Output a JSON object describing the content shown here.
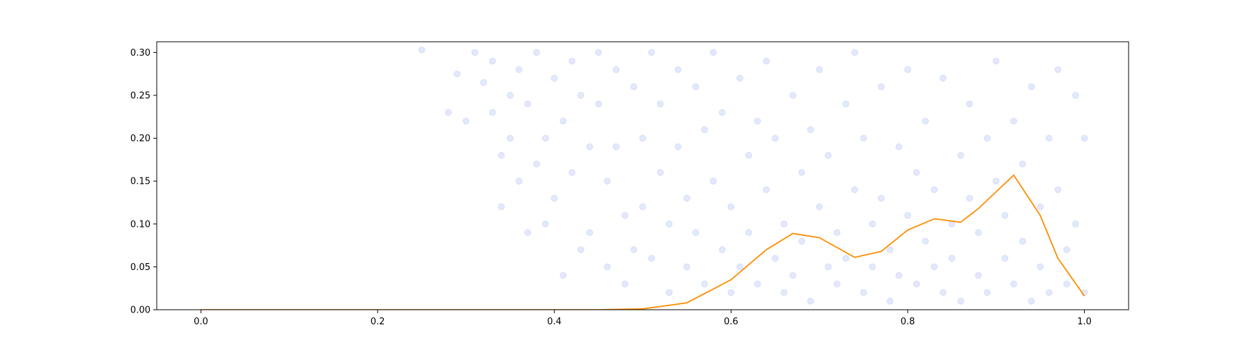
{
  "chart_data": {
    "type": "scatter",
    "title": "",
    "xlabel": "",
    "ylabel": "",
    "xlim": [
      -0.05,
      1.05
    ],
    "ylim": [
      0,
      0.3125
    ],
    "grid": false,
    "legend": "none",
    "x_ticks": [
      {
        "value": 0.0,
        "label": "0.0"
      },
      {
        "value": 0.2,
        "label": "0.2"
      },
      {
        "value": 0.4,
        "label": "0.4"
      },
      {
        "value": 0.6,
        "label": "0.6"
      },
      {
        "value": 0.8,
        "label": "0.8"
      },
      {
        "value": 1.0,
        "label": "1.0"
      }
    ],
    "y_ticks": [
      {
        "value": 0.0,
        "label": "0.00"
      },
      {
        "value": 0.05,
        "label": "0.05"
      },
      {
        "value": 0.1,
        "label": "0.10"
      },
      {
        "value": 0.15,
        "label": "0.15"
      },
      {
        "value": 0.2,
        "label": "0.20"
      },
      {
        "value": 0.25,
        "label": "0.25"
      },
      {
        "value": 0.3,
        "label": "0.30"
      }
    ],
    "series": [
      {
        "kind": "scatter",
        "color": "#4169e1",
        "opacity": 0.15,
        "points": [
          [
            0.25,
            0.303
          ],
          [
            0.28,
            0.23
          ],
          [
            0.29,
            0.275
          ],
          [
            0.3,
            0.22
          ],
          [
            0.31,
            0.3
          ],
          [
            0.32,
            0.265
          ],
          [
            0.33,
            0.29
          ],
          [
            0.33,
            0.23
          ],
          [
            0.34,
            0.18
          ],
          [
            0.34,
            0.12
          ],
          [
            0.35,
            0.25
          ],
          [
            0.35,
            0.2
          ],
          [
            0.36,
            0.28
          ],
          [
            0.36,
            0.15
          ],
          [
            0.37,
            0.09
          ],
          [
            0.37,
            0.24
          ],
          [
            0.38,
            0.17
          ],
          [
            0.38,
            0.3
          ],
          [
            0.39,
            0.1
          ],
          [
            0.39,
            0.2
          ],
          [
            0.4,
            0.27
          ],
          [
            0.4,
            0.13
          ],
          [
            0.41,
            0.04
          ],
          [
            0.41,
            0.22
          ],
          [
            0.42,
            0.29
          ],
          [
            0.42,
            0.16
          ],
          [
            0.43,
            0.07
          ],
          [
            0.43,
            0.25
          ],
          [
            0.44,
            0.19
          ],
          [
            0.44,
            0.09
          ],
          [
            0.45,
            0.3
          ],
          [
            0.45,
            0.24
          ],
          [
            0.46,
            0.15
          ],
          [
            0.46,
            0.05
          ],
          [
            0.47,
            0.28
          ],
          [
            0.47,
            0.19
          ],
          [
            0.48,
            0.11
          ],
          [
            0.48,
            0.03
          ],
          [
            0.49,
            0.26
          ],
          [
            0.49,
            0.07
          ],
          [
            0.5,
            0.2
          ],
          [
            0.5,
            0.12
          ],
          [
            0.51,
            0.3
          ],
          [
            0.51,
            0.06
          ],
          [
            0.52,
            0.24
          ],
          [
            0.52,
            0.16
          ],
          [
            0.53,
            0.1
          ],
          [
            0.53,
            0.02
          ],
          [
            0.54,
            0.28
          ],
          [
            0.54,
            0.19
          ],
          [
            0.55,
            0.13
          ],
          [
            0.55,
            0.05
          ],
          [
            0.56,
            0.26
          ],
          [
            0.56,
            0.09
          ],
          [
            0.57,
            0.21
          ],
          [
            0.57,
            0.03
          ],
          [
            0.58,
            0.15
          ],
          [
            0.58,
            0.3
          ],
          [
            0.59,
            0.07
          ],
          [
            0.59,
            0.23
          ],
          [
            0.6,
            0.12
          ],
          [
            0.6,
            0.02
          ],
          [
            0.61,
            0.27
          ],
          [
            0.61,
            0.05
          ],
          [
            0.62,
            0.18
          ],
          [
            0.62,
            0.09
          ],
          [
            0.63,
            0.22
          ],
          [
            0.63,
            0.03
          ],
          [
            0.64,
            0.14
          ],
          [
            0.64,
            0.29
          ],
          [
            0.65,
            0.06
          ],
          [
            0.65,
            0.2
          ],
          [
            0.66,
            0.1
          ],
          [
            0.66,
            0.02
          ],
          [
            0.67,
            0.25
          ],
          [
            0.67,
            0.04
          ],
          [
            0.68,
            0.16
          ],
          [
            0.68,
            0.08
          ],
          [
            0.69,
            0.21
          ],
          [
            0.69,
            0.01
          ],
          [
            0.7,
            0.12
          ],
          [
            0.7,
            0.28
          ],
          [
            0.71,
            0.05
          ],
          [
            0.71,
            0.18
          ],
          [
            0.72,
            0.09
          ],
          [
            0.72,
            0.03
          ],
          [
            0.73,
            0.24
          ],
          [
            0.73,
            0.06
          ],
          [
            0.74,
            0.14
          ],
          [
            0.74,
            0.3
          ],
          [
            0.75,
            0.02
          ],
          [
            0.75,
            0.2
          ],
          [
            0.76,
            0.1
          ],
          [
            0.76,
            0.05
          ],
          [
            0.77,
            0.26
          ],
          [
            0.77,
            0.13
          ],
          [
            0.78,
            0.07
          ],
          [
            0.78,
            0.01
          ],
          [
            0.79,
            0.19
          ],
          [
            0.79,
            0.04
          ],
          [
            0.8,
            0.11
          ],
          [
            0.8,
            0.28
          ],
          [
            0.81,
            0.03
          ],
          [
            0.81,
            0.16
          ],
          [
            0.82,
            0.08
          ],
          [
            0.82,
            0.22
          ],
          [
            0.83,
            0.05
          ],
          [
            0.83,
            0.14
          ],
          [
            0.84,
            0.02
          ],
          [
            0.84,
            0.27
          ],
          [
            0.85,
            0.1
          ],
          [
            0.85,
            0.06
          ],
          [
            0.86,
            0.18
          ],
          [
            0.86,
            0.01
          ],
          [
            0.87,
            0.13
          ],
          [
            0.87,
            0.24
          ],
          [
            0.88,
            0.04
          ],
          [
            0.88,
            0.09
          ],
          [
            0.89,
            0.2
          ],
          [
            0.89,
            0.02
          ],
          [
            0.9,
            0.15
          ],
          [
            0.9,
            0.29
          ],
          [
            0.91,
            0.06
          ],
          [
            0.91,
            0.11
          ],
          [
            0.92,
            0.03
          ],
          [
            0.92,
            0.22
          ],
          [
            0.93,
            0.08
          ],
          [
            0.93,
            0.17
          ],
          [
            0.94,
            0.01
          ],
          [
            0.94,
            0.26
          ],
          [
            0.95,
            0.12
          ],
          [
            0.95,
            0.05
          ],
          [
            0.96,
            0.2
          ],
          [
            0.96,
            0.02
          ],
          [
            0.97,
            0.14
          ],
          [
            0.97,
            0.28
          ],
          [
            0.98,
            0.07
          ],
          [
            0.98,
            0.03
          ],
          [
            0.99,
            0.1
          ],
          [
            0.99,
            0.25
          ],
          [
            1.0,
            0.02
          ],
          [
            1.0,
            0.2
          ]
        ]
      },
      {
        "kind": "line",
        "color": "#ff8c00",
        "points": [
          [
            0.0,
            0.0
          ],
          [
            0.45,
            0.0
          ],
          [
            0.5,
            0.001
          ],
          [
            0.55,
            0.008
          ],
          [
            0.6,
            0.035
          ],
          [
            0.64,
            0.07
          ],
          [
            0.67,
            0.089
          ],
          [
            0.7,
            0.084
          ],
          [
            0.74,
            0.061
          ],
          [
            0.77,
            0.068
          ],
          [
            0.8,
            0.093
          ],
          [
            0.83,
            0.106
          ],
          [
            0.86,
            0.102
          ],
          [
            0.88,
            0.118
          ],
          [
            0.92,
            0.157
          ],
          [
            0.95,
            0.11
          ],
          [
            0.97,
            0.06
          ],
          [
            1.0,
            0.016
          ]
        ]
      }
    ]
  }
}
